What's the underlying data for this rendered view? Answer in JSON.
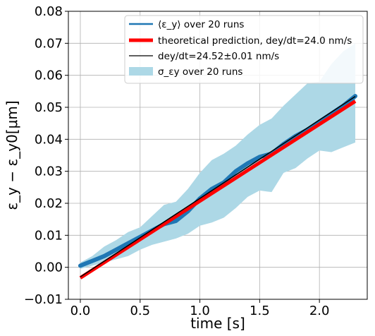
{
  "chart_data": {
    "type": "line",
    "xlabel": "time [s]",
    "ylabel": "ε_y − ε_y0[μm]",
    "xlim": [
      -0.1,
      2.4
    ],
    "ylim": [
      -0.01,
      0.08
    ],
    "x_ticks": [
      {
        "value": 0.0,
        "label": "0.0"
      },
      {
        "value": 0.5,
        "label": "0.5"
      },
      {
        "value": 1.0,
        "label": "1.0"
      },
      {
        "value": 1.5,
        "label": "1.5"
      },
      {
        "value": 2.0,
        "label": "2.0"
      }
    ],
    "y_ticks": [
      {
        "value": -0.01,
        "label": "−0.01"
      },
      {
        "value": 0.0,
        "label": "0.00"
      },
      {
        "value": 0.01,
        "label": "0.01"
      },
      {
        "value": 0.02,
        "label": "0.02"
      },
      {
        "value": 0.03,
        "label": "0.03"
      },
      {
        "value": 0.04,
        "label": "0.04"
      },
      {
        "value": 0.05,
        "label": "0.05"
      },
      {
        "value": 0.06,
        "label": "0.06"
      },
      {
        "value": 0.07,
        "label": "0.07"
      },
      {
        "value": 0.08,
        "label": "0.08"
      }
    ],
    "grid": true,
    "legend_position": "top-right",
    "series": [
      {
        "name": "⟨ε_y⟩ over 20 runs",
        "kind": "mean",
        "color": "#1f77b4",
        "x": [
          0.0,
          0.1,
          0.2,
          0.3,
          0.4,
          0.5,
          0.6,
          0.7,
          0.8,
          0.9,
          1.0,
          1.1,
          1.2,
          1.3,
          1.4,
          1.5,
          1.6,
          1.7,
          1.8,
          1.9,
          2.0,
          2.1,
          2.2,
          2.3
        ],
        "y": [
          0.0005,
          0.002,
          0.0035,
          0.0055,
          0.0075,
          0.0095,
          0.0115,
          0.0135,
          0.0145,
          0.0175,
          0.0215,
          0.0245,
          0.0265,
          0.03,
          0.0325,
          0.0345,
          0.0355,
          0.0385,
          0.041,
          0.043,
          0.0455,
          0.048,
          0.0505,
          0.0535
        ]
      },
      {
        "name": "theoretical prediction, dey/dt=24.0 nm/s",
        "kind": "line",
        "color": "#ff0000",
        "x": [
          0.0,
          2.3
        ],
        "y": [
          -0.0033,
          0.0519
        ]
      },
      {
        "name": "dey/dt=24.52±0.01 nm/s",
        "kind": "line",
        "color": "#000000",
        "x": [
          0.0,
          2.3
        ],
        "y": [
          -0.003,
          0.0534
        ]
      },
      {
        "name": "σ_εy over 20 runs",
        "kind": "band",
        "color": "#add8e6",
        "x": [
          0.0,
          0.1,
          0.2,
          0.3,
          0.4,
          0.5,
          0.6,
          0.7,
          0.8,
          0.9,
          1.0,
          1.1,
          1.2,
          1.3,
          1.4,
          1.5,
          1.6,
          1.7,
          1.8,
          1.9,
          2.0,
          2.1,
          2.2,
          2.3
        ],
        "lower": [
          -0.0005,
          0.0005,
          0.0015,
          0.0025,
          0.0035,
          0.0055,
          0.007,
          0.008,
          0.009,
          0.0105,
          0.013,
          0.014,
          0.0155,
          0.0185,
          0.022,
          0.024,
          0.0235,
          0.0295,
          0.031,
          0.034,
          0.0365,
          0.036,
          0.0375,
          0.039
        ],
        "upper": [
          0.0015,
          0.0035,
          0.0065,
          0.0085,
          0.011,
          0.0125,
          0.016,
          0.0195,
          0.0205,
          0.0245,
          0.0295,
          0.0335,
          0.0355,
          0.038,
          0.0415,
          0.0445,
          0.0465,
          0.0505,
          0.054,
          0.0575,
          0.058,
          0.0635,
          0.0675,
          0.07
        ]
      }
    ]
  }
}
